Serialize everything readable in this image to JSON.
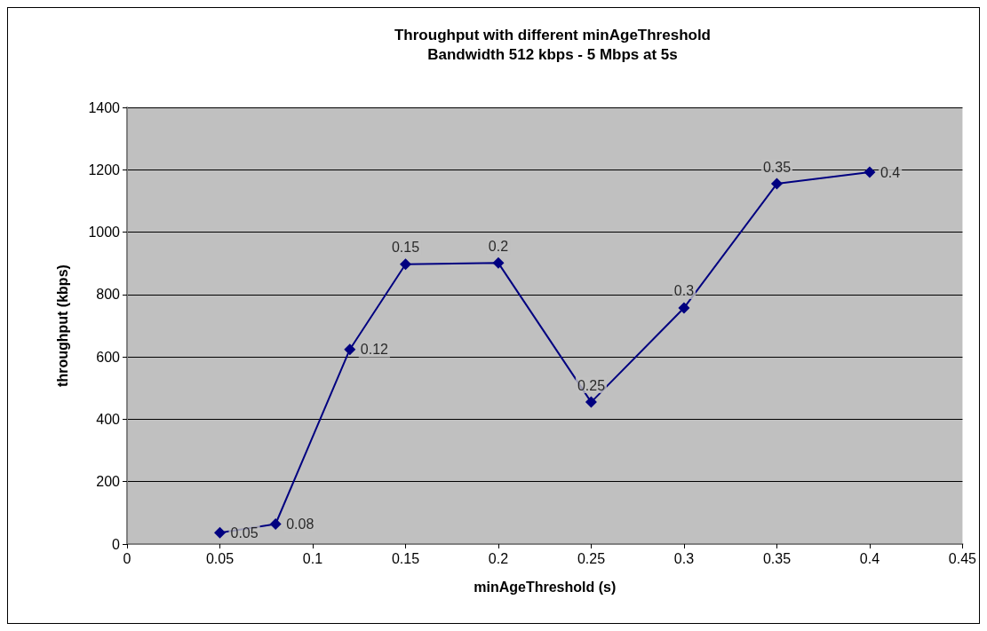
{
  "chart_data": {
    "type": "line",
    "title": "Throughput with different minAgeThreshold\nBandwidth 512 kbps - 5 Mbps at 5s",
    "xlabel": "minAgeThreshold (s)",
    "ylabel": "throughput (kbps)",
    "x": [
      0.05,
      0.08,
      0.12,
      0.15,
      0.2,
      0.25,
      0.3,
      0.35,
      0.4
    ],
    "series": [
      {
        "color": "#000080",
        "values": [
          36,
          64,
          624,
          897,
          901,
          455,
          757,
          1155,
          1192
        ]
      }
    ],
    "annotations": [
      {
        "text": "0.05",
        "x": 0.05,
        "y": 36
      },
      {
        "text": "0.08",
        "x": 0.08,
        "y": 64
      },
      {
        "text": "0.12",
        "x": 0.12,
        "y": 624
      },
      {
        "text": "0.15",
        "x": 0.15,
        "y": 897
      },
      {
        "text": "0.2",
        "x": 0.2,
        "y": 901
      },
      {
        "text": "0.25",
        "x": 0.25,
        "y": 455
      },
      {
        "text": "0.3",
        "x": 0.3,
        "y": 757
      },
      {
        "text": "0.35",
        "x": 0.35,
        "y": 1155
      },
      {
        "text": "0.4",
        "x": 0.4,
        "y": 1192
      }
    ],
    "xlim": [
      0,
      0.45
    ],
    "xticks": [
      0,
      0.05,
      0.1,
      0.15,
      0.2,
      0.25,
      0.3,
      0.35,
      0.4,
      0.45
    ],
    "ylim": [
      0,
      1400
    ],
    "yticks": [
      0,
      200,
      400,
      600,
      800,
      1000,
      1200,
      1400
    ],
    "grid": "y",
    "marker": "diamond",
    "line_style": "solid"
  }
}
